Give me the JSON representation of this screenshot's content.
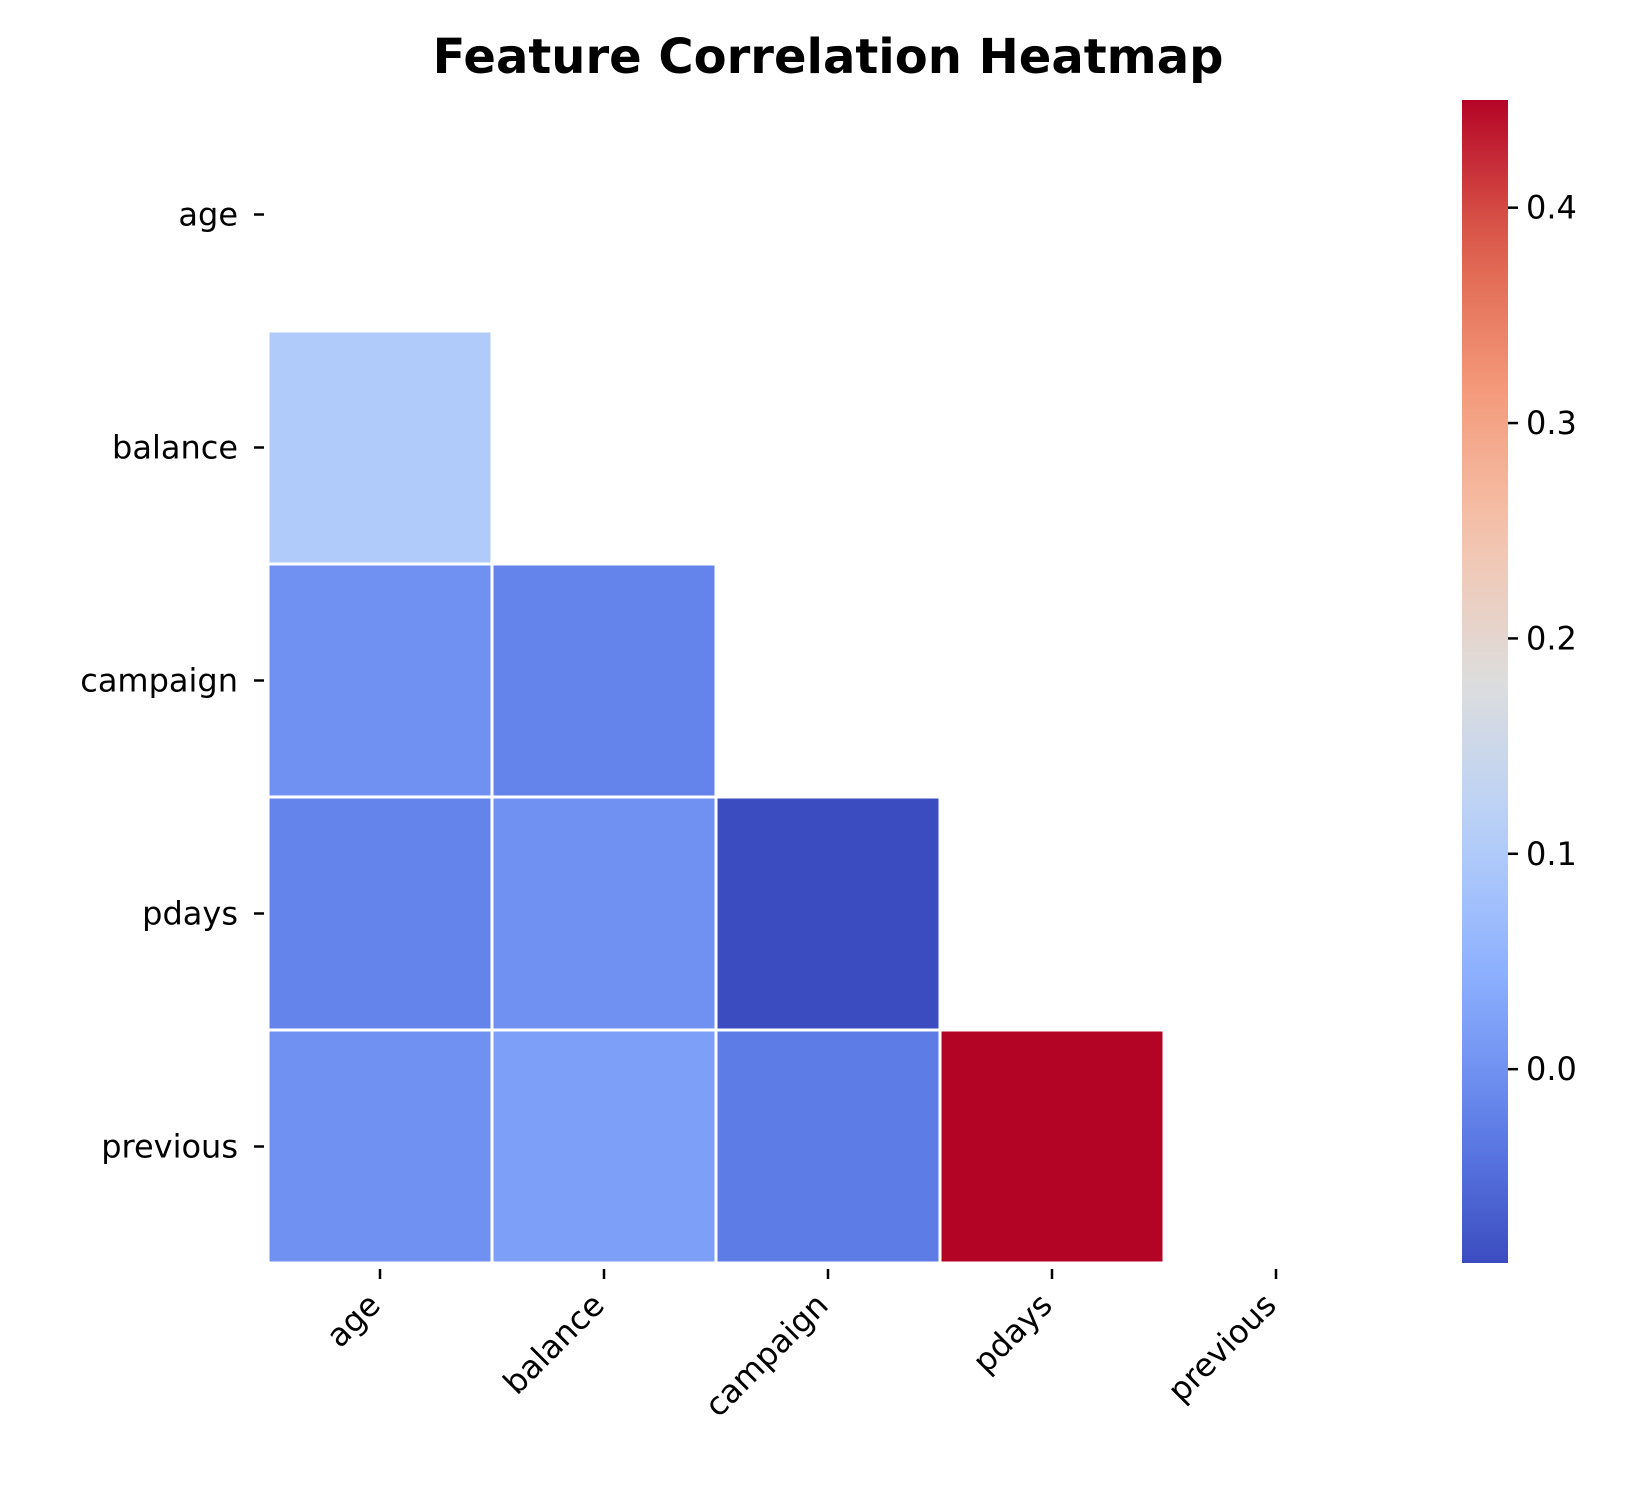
{
  "chart_data": {
    "type": "heatmap",
    "title": "Feature Correlation Heatmap",
    "xlabel": "",
    "ylabel": "",
    "rows": [
      "age",
      "balance",
      "campaign",
      "pdays",
      "previous"
    ],
    "cols": [
      "age",
      "balance",
      "campaign",
      "pdays",
      "previous"
    ],
    "mask": "upper-triangle including diagonal",
    "values": [
      [
        null,
        null,
        null,
        null,
        null
      ],
      [
        0.1,
        null,
        null,
        null,
        null
      ],
      [
        0.0,
        -0.02,
        null,
        null,
        null
      ],
      [
        -0.02,
        0.0,
        -0.09,
        null,
        null
      ],
      [
        0.0,
        0.02,
        -0.03,
        0.45,
        null
      ]
    ],
    "colormap": "coolwarm",
    "vmin": -0.09,
    "vmax": 0.45,
    "cell_border_color": "#ffffff",
    "colorbar": {
      "ticks": [
        "0.0",
        "0.1",
        "0.2",
        "0.3",
        "0.4"
      ],
      "tick_values": [
        0.0,
        0.1,
        0.2,
        0.3,
        0.4
      ]
    }
  }
}
